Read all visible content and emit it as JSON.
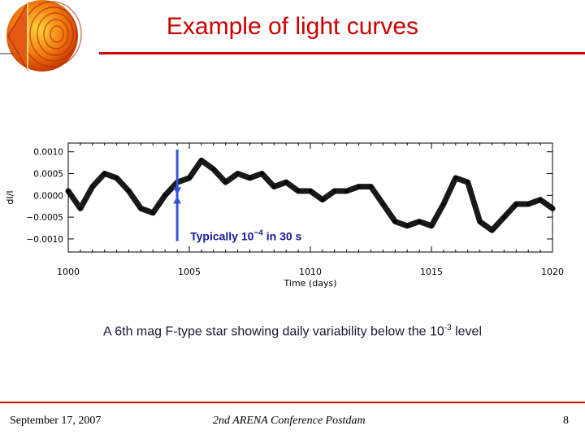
{
  "slide": {
    "title": "Example of light curves",
    "caption_main": "A 6th mag F-type star showing daily variability below the 10",
    "caption_exp": "-3",
    "caption_tail": " level"
  },
  "footer": {
    "date": "September 17, 2007",
    "center": "2nd ARENA Conference Postdam",
    "page": "8"
  },
  "colors": {
    "title": "#cc0000",
    "rule": "#cc0000",
    "data": "#000000",
    "arrow": "#3355dd",
    "annotation": "#1a1a99"
  },
  "chart_data": {
    "type": "scatter",
    "title": "",
    "xlabel": "Time (days)",
    "ylabel": "dI/I",
    "xlim": [
      1000,
      1020
    ],
    "ylim": [
      -0.0013,
      0.0012
    ],
    "xticks": [
      1000,
      1005,
      1010,
      1015,
      1020
    ],
    "xtick_labels": [
      "1000",
      "1005",
      "1010",
      "1015",
      "1020"
    ],
    "yticks": [
      0.001,
      0.0005,
      0.0,
      -0.0005,
      -0.001
    ],
    "ytick_labels": [
      "0.0010",
      "0.0005",
      "0.0000",
      "−0.0005",
      "−0.0010"
    ],
    "series": [
      {
        "x": [
          1000.0,
          1000.5,
          1001.0,
          1001.5,
          1002.0,
          1002.5,
          1003.0,
          1003.5,
          1004.0,
          1004.5,
          1005.0,
          1005.5,
          1006.0,
          1006.5,
          1007.0,
          1007.5,
          1008.0,
          1008.5,
          1009.0,
          1009.5,
          1010.0,
          1010.5,
          1011.0,
          1011.5,
          1012.0,
          1012.5,
          1013.0,
          1013.5,
          1014.0,
          1014.5,
          1015.0,
          1015.5,
          1016.0,
          1016.5,
          1017.0,
          1017.5,
          1018.0,
          1018.5,
          1019.0,
          1019.5,
          1020.0
        ],
        "y": [
          0.0001,
          -0.0003,
          0.0002,
          0.0005,
          0.0004,
          0.0001,
          -0.0003,
          -0.0004,
          0.0,
          0.0003,
          0.0004,
          0.0008,
          0.0006,
          0.0003,
          0.0005,
          0.0004,
          0.0005,
          0.0002,
          0.0003,
          0.0001,
          0.0001,
          -0.0001,
          0.0001,
          0.0001,
          0.0002,
          0.0002,
          -0.0002,
          -0.0006,
          -0.0007,
          -0.0006,
          -0.0007,
          -0.0002,
          0.0004,
          0.0003,
          -0.0006,
          -0.0008,
          -0.0005,
          -0.0002,
          -0.0002,
          -0.0001,
          -0.0003
        ]
      }
    ],
    "annotations": [
      {
        "text_pre": "Typically 10",
        "text_exp": "−4",
        "text_post": " in 30 s",
        "x": 1004.5,
        "y_from": -0.00105,
        "y_to": 0.00105
      }
    ],
    "grid": false
  }
}
